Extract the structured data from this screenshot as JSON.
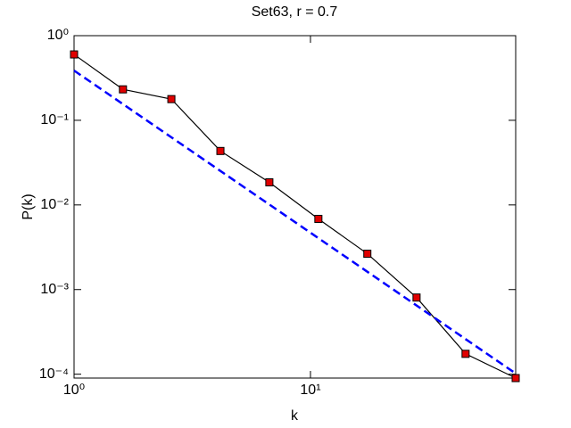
{
  "chart_data": {
    "type": "line",
    "title": "Set63, r = 0.7",
    "xlabel": "k",
    "ylabel": "P(k)",
    "xscale": "log",
    "yscale": "log",
    "grid": false,
    "xlim": [
      1,
      73.8
    ],
    "ylim": [
      9e-05,
      1
    ],
    "xticks": [
      {
        "value": 1,
        "label": "10⁰"
      },
      {
        "value": 10,
        "label": "10¹"
      }
    ],
    "yticks": [
      {
        "value": 0.0001,
        "label": "10⁻⁴"
      },
      {
        "value": 0.001,
        "label": "10⁻³"
      },
      {
        "value": 0.01,
        "label": "10⁻²"
      },
      {
        "value": 0.1,
        "label": "10⁻¹"
      },
      {
        "value": 1,
        "label": "10⁰"
      }
    ],
    "series": [
      {
        "color": "#000000",
        "marker_color": "#e00000",
        "style": "solid",
        "marker": "square",
        "x": [
          1,
          1.61,
          2.58,
          4.16,
          6.7,
          10.8,
          17.4,
          28.1,
          45.3,
          73.8
        ],
        "values": [
          0.6,
          0.232,
          0.178,
          0.0434,
          0.0185,
          0.00684,
          0.00265,
          0.000805,
          0.000174,
          9e-05
        ]
      },
      {
        "color": "#0000ff",
        "style": "dashed",
        "x": [
          1,
          73.8
        ],
        "values": [
          0.387,
          0.000102
        ]
      }
    ]
  }
}
